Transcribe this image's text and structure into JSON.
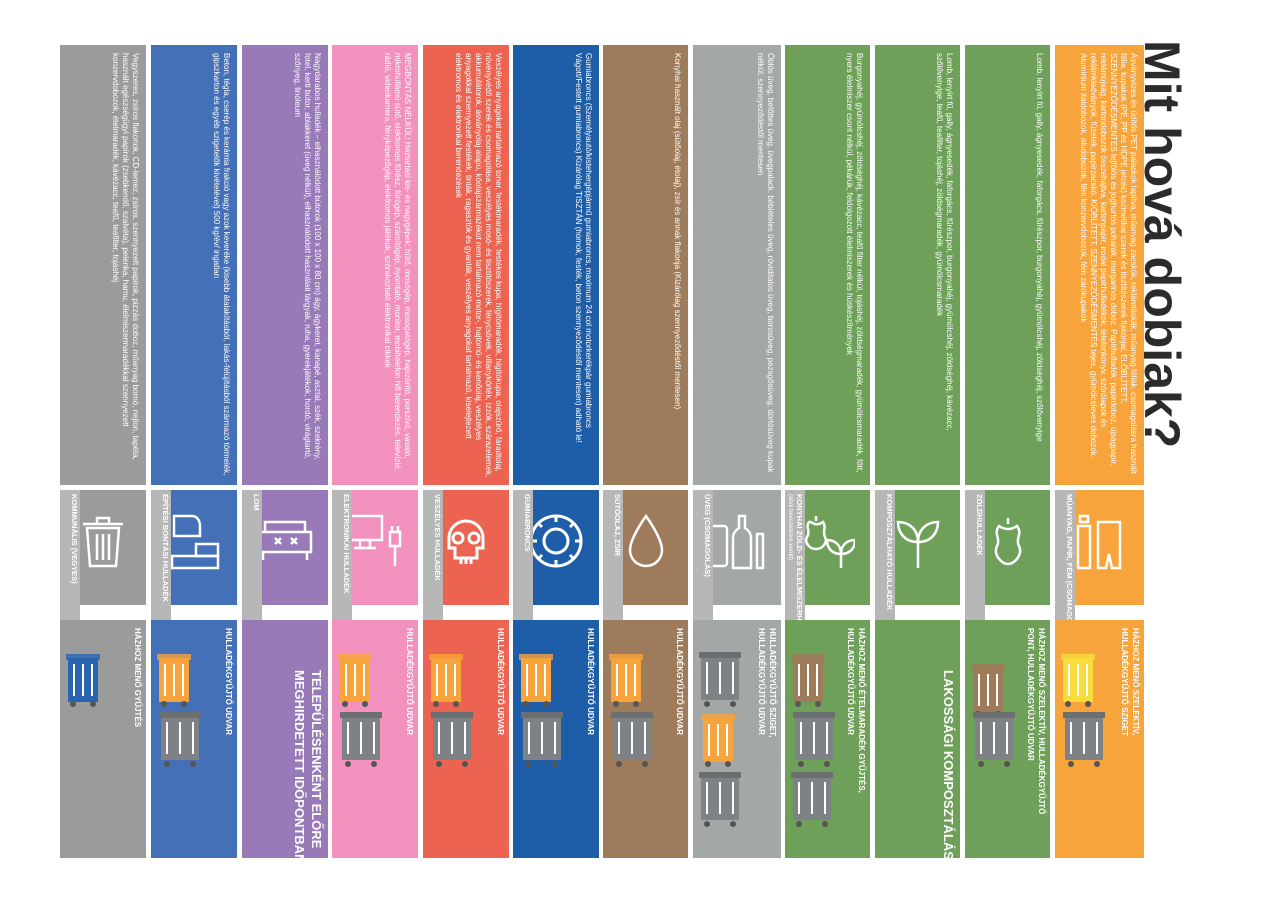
{
  "title": "Mit hová dobjak?",
  "colors": {
    "orange": "#f6a43b",
    "green": "#6fa05a",
    "grey": "#a3a7a5",
    "brown": "#9d7b5b",
    "blue": "#1e5ea9",
    "red": "#ec6451",
    "pink": "#f291bd",
    "purple": "#977ab7",
    "lightblue": "#4470b8",
    "medgrey": "#9a9c9b"
  },
  "strips": [
    {
      "key": "plastic",
      "color": "#f6a43b",
      "desc": "Ásványvizes és üdítős PET palackok lapítva, műanyag zacskók, reklámtáskák, műanyag fóliák, csomagolásra használt fólia, kupakok (PE, PP és HDPE jelzés) kozmetikai szerek és tisztítószerek flakonjai, ELŐBLÍTETT, SZENNYEZŐDÉSMENTES tejfölös és joghurtos poharak, margarinos doboz. Papírhulladék: papírdoboz, újságpapír, reklámújság, kartondobozok összehajtva, kartonpapír, irodai papírhulladékok, telefonkönyv, szórólapok és reklámkiadványok, füzetek, papírzacskó. KIÖBLÍTETT, SZENNYEZŐDÉSMENTES tejes, gyümölcsleves dobozok. Alumínium italdobozok, aludobozok, fém konzervdobozok, fém zárókupakok",
      "cat": "MŰANYAG, PAPÍR, FÉM (CSOMAGOLÁS)",
      "coll": [
        "HÁZHOZ MENŐ SZELEKTÍV,",
        "HULLADÉKGYŰJTŐ SZIGET"
      ]
    },
    {
      "key": "green",
      "color": "#6fa05a",
      "desc": "Lomb, lenyírt fű, gally, ágnyesedék, faforgács, fűrészpor, burgonyahéj, gyümölcshéj, zöldséghéj, szőlővenyige",
      "cat": "ZÖLDHULLADÉK",
      "coll": [
        "HÁZHOZ MENŐ SZELEKTÍV, HULLADÉKGYŰJTŐ",
        "PONT, HULLADÉKGYŰJTŐ UDVAR"
      ]
    },
    {
      "key": "compost",
      "color": "#6fa05a",
      "desc": "Lomb, lenyírt fű, gally, ágnyesedék, faforgács, fűrészpor, burgonyahéj, gyümölcshéj, zöldséghéj, kávézacc, szőlővenyige, teafű, teafilter, tojáshéj, zöldségmaradék, gyümölcsmaradék",
      "cat": "KOMPOSZTÁLHATÓ HULLADÉK",
      "coll": [
        "LAKOSSÁGI KOMPOSZTÁLÁS"
      ]
    },
    {
      "key": "kitchen",
      "color": "#6fa05a",
      "desc": "Burgonyahéj, gyümölcshéj, zöldséghéj, kávézacc, teafű filter nélkül, tojáshéj, zöldségmaradék, gyümölcsmaradék, főtt, nyers élelmiszer csont nélkül, pékárúk, feldolgozott élelmiszerek és húskészítmények",
      "cat": "KONYHAI ZÖLD- ÉS ÉLELMISZERHULLADÉK",
      "cat2": "(ahol bevezetésre került)",
      "coll": [
        "HÁZHOZ MENŐ ÉTELMARADÉK GYŰJTÉS,",
        "HULLADÉKGYŰJTŐ UDVAR"
      ]
    },
    {
      "key": "glass",
      "color": "#a3a7a5",
      "desc": "Öblös üveg, befőttes üveg, üvegpalack, bébiételes üveg, röviditalos üveg, borosüveg, pezsgősüveg, dörtösüveg kupak nélkül, szennyeződéstől mentesen",
      "cat": "ÜVEG (CSOMAGOLÁS)",
      "coll": [
        "HULLADÉKGYŰJTŐ SZIGET,",
        "HULLADÉKGYŰJTŐ UDVAR"
      ]
    },
    {
      "key": "oil",
      "color": "#9d7b5b",
      "desc": "Konyhai használt olaj (sütőolaj, étolaj), zsír és annak flakonja (Kizárólag szennyeződéstől mentesen)",
      "cat": "SÜTŐOLAJ, ZSÍR",
      "coll": [
        "HULLADÉKGYŰJTŐ UDVAR"
      ]
    },
    {
      "key": "tyre",
      "color": "#1e5ea9",
      "desc": "Gumiabroncs (Személyautó/kistehergépjármű gumiabroncs, maximum 24 col motorkerékpár gumiabroncs Vágott/Festett gumiabroncs) Kizárólag TISZTÁN (homok, festék, beton szennyeződéstől mentesen) adható le!",
      "cat": "GUMIABRONCS",
      "coll": [
        "HULLADÉKGYŰJTŐ UDVAR"
      ]
    },
    {
      "key": "hazard",
      "color": "#ec6451",
      "desc": "Veszélyes anyagokat tartalmazó toner, festékmaradék, festékes kupa, hígítómaradék, hígítókupa, olajszűrő, fáradtolaj, növényvédő szerek és csomagolása, veszélyes mosó- és tisztítószerek, fénycsövek, villanykörték, izzók, szárazelemek, akkumulátorok, ásványolaj alapú, kőolajszármazékot nem tartalmazó motor-, hajtómű- és kenőolaj, veszélyes anyagokkal szennyezett festékek, tinták, ragasztók és gyanták, veszélyes anyagokat tartalmazó, kiselejtezett elektromos és elektronikai berendezések",
      "cat": "VESZÉLYES HULLADÉK",
      "coll": [
        "HULLADÉKGYŰJTŐ UDVAR"
      ]
    },
    {
      "key": "electronic",
      "color": "#f291bd",
      "desc": "MEGBONTÁS NÉLKÜL! Háztartási kis- és nagygépek: hűtő, mosógép, mosogatógép, hajszárító, porszívó, vasaló, mikrohullámú sütő, elektromos fűrész, fúrógép, számítógép, nyomtató, monitor, mobiltelefon hifi berendezés, televízió, rádió, videokamera, fényképezőgép, elektromos játékok, szórakoztató elektronikai cikkek",
      "cat": "ELEKTRONIKAI HULLADÉK",
      "coll": [
        "HULLADÉKGYŰJTŐ UDVAR"
      ]
    },
    {
      "key": "bulky",
      "color": "#977ab7",
      "desc": "Nagydarabos hulladék – elhasználódott bútorok (100 x 100 x 80 cm) ágy, ágykeret, kanapé, asztal, szék, szekrény, fotel, kerti bútor, ablakkeret (üveg nélkül), elhasználódott használati tárgyak, ruha, gyerekjátékok, hordó, virágtartó, szőnyeg, linóleum",
      "cat": "LOM",
      "coll": [
        "TELEPÜLÉSENKÉNT ELŐRE",
        "MEGHIRDETETT IDŐPONTBAN"
      ]
    },
    {
      "key": "construction",
      "color": "#4470b8",
      "desc": "Beton, tégla, cserép és kerámia frakció vagy azok keveréke (kisebb átalakításból, lakás-felújításból származó törmelék, gipszkarton és egyéb szigetelők kivételével) 500 kg/év/ ingatlan",
      "cat": "ÉPÍTÉSI BONTÁSI HULLADÉK",
      "coll": [
        "HULLADÉKGYŰJTŐ UDVAR"
      ]
    },
    {
      "key": "communal",
      "color": "#9a9c9b",
      "desc": "Vegyszeres, zsíros flakonok, CD-lemez, zsíros, szennyezett papírok, pizzás doboz, műanyag bornó, nejlon, tapéta, használt egészségügyi papírok (zsebkendő, szalvéta), pelenka, hamu, élelmiszermaradékkal szennyezett konzervdobozok, ételmaradék, kávézacc, teafű, teafilter, tojáshéj",
      "cat": "KOMMUNÁLIS (VEGYES)",
      "coll": [
        "HÁZHOZ MENŐ GYŰJTÉS"
      ]
    }
  ]
}
